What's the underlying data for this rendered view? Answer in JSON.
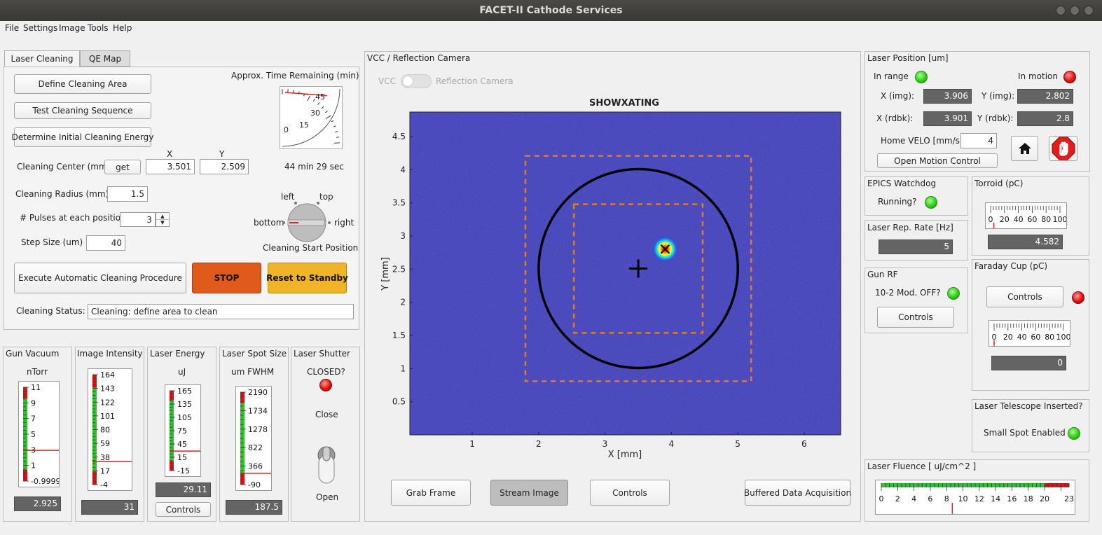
{
  "window": {
    "title": "FACET-II Cathode Services"
  },
  "menu": [
    "File",
    "Settings",
    "Image",
    "Tools",
    "Help"
  ],
  "tabs": [
    "Laser Cleaning",
    "QE Map"
  ],
  "cleaning": {
    "define_area": "Define Cleaning Area",
    "test_sequence": "Test Cleaning Sequence",
    "initial_energy": "Determine Initial Cleaning Energy",
    "time_remaining_label": "Approx. Time Remaining (min)",
    "time_gauge_ticks": [
      "0",
      "15",
      "30",
      "45"
    ],
    "time_gauge_value_min": 44.5,
    "time_text": "44 min 29 sec",
    "center_label": "Cleaning Center (mm):",
    "get_button": "get",
    "x_header": "X",
    "y_header": "Y",
    "center_x": "3.501",
    "center_y": "2.509",
    "radius_label": "Cleaning Radius (mm)",
    "radius": "1.5",
    "pulses_label": "# Pulses at each position",
    "pulses": "3",
    "step_label": "Step Size (um)",
    "step": "40",
    "knob_left": "left",
    "knob_top": "top",
    "knob_bottom": "bottom",
    "knob_right": "right",
    "knob_label": "Cleaning Start Position",
    "execute_button": "Execute Automatic Cleaning Procedure",
    "stop_button": "STOP",
    "reset_button": "Reset to Standby",
    "status_label": "Cleaning Status:",
    "status_value": "Cleaning: define area to clean"
  },
  "gauges": {
    "vacuum": {
      "title": "Gun Vacuum",
      "unit": "nTorr",
      "ticks": [
        "11",
        "9",
        "7",
        "5",
        "3",
        "1",
        "-0.9999"
      ],
      "value": "2.925"
    },
    "intensity": {
      "title": "Image Intensity",
      "ticks": [
        "164",
        "143",
        "122",
        "101",
        "80",
        "59",
        "38",
        "17",
        "-4"
      ],
      "value": "31"
    },
    "energy": {
      "title": "Laser Energy",
      "unit": "uJ",
      "ticks": [
        "165",
        "135",
        "105",
        "75",
        "45",
        "15",
        "-15"
      ],
      "value": "29.11",
      "controls": "Controls"
    },
    "spot": {
      "title": "Laser Spot Size",
      "unit": "um FWHM",
      "ticks": [
        "2190",
        "1734",
        "1278",
        "822",
        "366",
        "-90"
      ],
      "value": "187.5"
    },
    "shutter": {
      "title": "Laser Shutter",
      "closed_label": "CLOSED?",
      "close": "Close",
      "open": "Open"
    }
  },
  "camera": {
    "panel_title": "VCC / Reflection Camera",
    "toggle_left": "VCC",
    "toggle_right": "Reflection Camera",
    "image_title": "SHOWXATING",
    "xlabel": "X [mm]",
    "ylabel": "Y [mm]",
    "xticks": [
      "1",
      "2",
      "3",
      "4",
      "5",
      "6"
    ],
    "yticks": [
      "4.5",
      "4",
      "3.5",
      "3",
      "2.5",
      "2",
      "1.5",
      "1",
      "0.5"
    ],
    "buttons": {
      "grab": "Grab Frame",
      "stream": "Stream Image",
      "controls": "Controls",
      "buffered": "Buffered Data Acquisition"
    }
  },
  "laser_position": {
    "title": "Laser Position [um]",
    "in_range": "In range",
    "in_motion": "In motion",
    "x_img_label": "X (img):",
    "x_img": "3.906",
    "y_img_label": "Y (img):",
    "y_img": "2.802",
    "x_rdbk_label": "X (rdbk):",
    "x_rdbk": "3.901",
    "y_rdbk_label": "Y (rdbk):",
    "y_rdbk": "2.8",
    "home_velo_label": "Home VELO [mm/s]",
    "home_velo": "4",
    "motion_control": "Open Motion Control"
  },
  "epics": {
    "title": "EPICS Watchdog",
    "running": "Running?"
  },
  "rep_rate": {
    "title": "Laser Rep. Rate [Hz]",
    "value": "5"
  },
  "gun_rf": {
    "title": "Gun RF",
    "status": "10-2 Mod. OFF?",
    "controls": "Controls"
  },
  "torroid": {
    "title": "Torroid (pC)",
    "ticks": [
      "0",
      "20",
      "40",
      "60",
      "80",
      "100"
    ],
    "value": "4.582"
  },
  "faraday": {
    "title": "Faraday Cup (pC)",
    "controls": "Controls",
    "ticks": [
      "0",
      "20",
      "40",
      "60",
      "80",
      "100"
    ],
    "value": "0"
  },
  "telescope": {
    "title": "Laser Telescope Inserted?",
    "status": "Small Spot Enabled"
  },
  "fluence": {
    "title": "Laser Fluence [ uJ/cm^2 ]",
    "ticks": [
      "0",
      "2",
      "4",
      "6",
      "8",
      "10",
      "12",
      "14",
      "16",
      "18",
      "20",
      "23"
    ],
    "value": 8.7
  },
  "colors": {
    "stop": "#e05a1c",
    "reset": "#f0b429",
    "image_bg": "#3a3ab4",
    "roi": "#e07a2c"
  }
}
